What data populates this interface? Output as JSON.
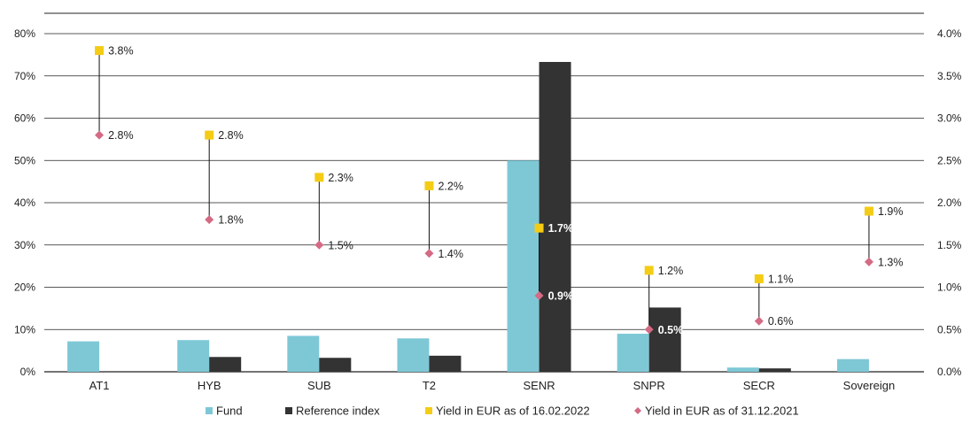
{
  "chart_data": {
    "type": "bar",
    "categories": [
      "AT1",
      "HYB",
      "SUB",
      "T2",
      "SENR",
      "SNPR",
      "SECR",
      "Sovereign"
    ],
    "series": [
      {
        "name": "Fund",
        "kind": "bar",
        "axis": "left",
        "color": "#7ec8d6",
        "values": [
          7.2,
          7.5,
          8.5,
          7.9,
          50.0,
          9.0,
          1.0,
          3.0
        ]
      },
      {
        "name": "Reference index",
        "kind": "bar",
        "axis": "left",
        "color": "#333333",
        "values": [
          0,
          3.5,
          3.3,
          3.8,
          73.3,
          15.2,
          0.8,
          0
        ]
      },
      {
        "name": "Yield in EUR as of 16.02.2022",
        "kind": "marker",
        "marker": "square",
        "axis": "right",
        "color": "#f4cc15",
        "values": [
          3.8,
          2.8,
          2.3,
          2.2,
          1.7,
          1.2,
          1.1,
          1.9
        ],
        "labels": [
          "3.8%",
          "2.8%",
          "2.3%",
          "2.2%",
          "1.7%",
          "1.2%",
          "1.1%",
          "1.9%"
        ]
      },
      {
        "name": "Yield in EUR as of 31.12.2021",
        "kind": "marker",
        "marker": "diamond",
        "axis": "right",
        "color": "#d46a84",
        "values": [
          2.8,
          1.8,
          1.5,
          1.4,
          0.9,
          0.5,
          0.6,
          1.3
        ],
        "labels": [
          "2.8%",
          "1.8%",
          "1.5%",
          "1.4%",
          "0.9%",
          "0.5%",
          "0.6%",
          "1.3%"
        ]
      }
    ],
    "y_left": {
      "ylim": [
        0,
        80
      ],
      "ticks": [
        "0%",
        "10%",
        "20%",
        "30%",
        "40%",
        "50%",
        "60%",
        "70%",
        "80%"
      ]
    },
    "y_right": {
      "ylim": [
        0,
        4.0
      ],
      "ticks": [
        "0.0%",
        "0.5%",
        "1.0%",
        "1.5%",
        "2.0%",
        "2.5%",
        "3.0%",
        "3.5%",
        "4.0%"
      ]
    },
    "grid": true,
    "legend_position": "bottom"
  }
}
